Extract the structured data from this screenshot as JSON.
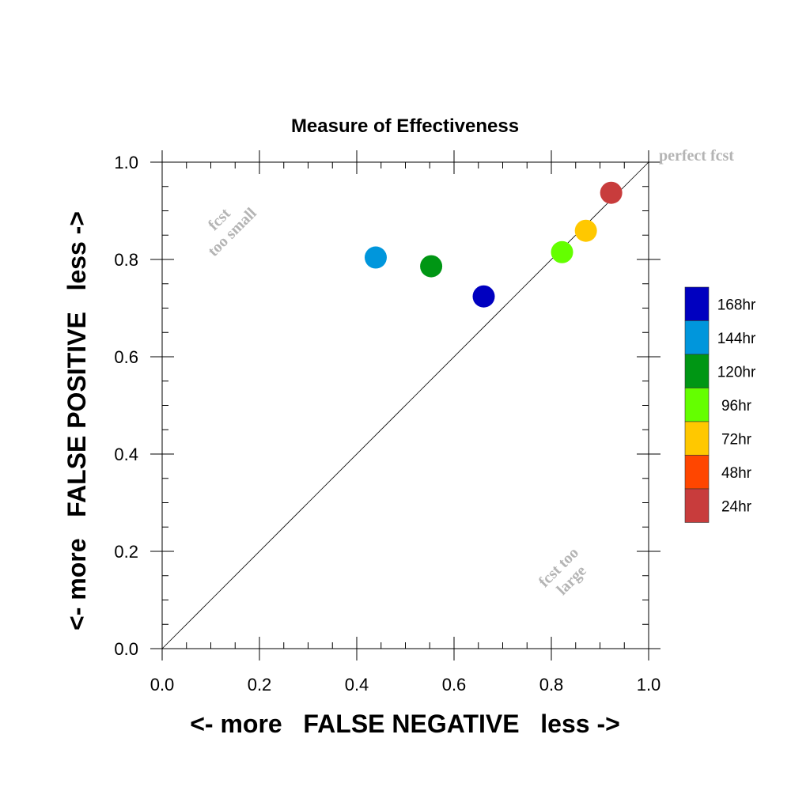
{
  "chart_data": {
    "type": "scatter",
    "title": "Measure of Effectiveness",
    "xlabel": "<- more   FALSE NEGATIVE   less ->",
    "ylabel": "<- more   FALSE POSITIVE   less ->",
    "xlim": [
      0.0,
      1.0
    ],
    "ylim": [
      0.0,
      1.0
    ],
    "xticks": [
      "0.0",
      "0.2",
      "0.4",
      "0.6",
      "0.8",
      "1.0"
    ],
    "yticks": [
      "0.0",
      "0.2",
      "0.4",
      "0.6",
      "0.8",
      "1.0"
    ],
    "grid": false,
    "diagonal_reference_line": true,
    "legend_position": "right",
    "annotations": {
      "perfect": "perfect fcst",
      "too_small_1": "fcst",
      "too_small_2": "too small",
      "too_large_1": "fcst too",
      "too_large_2": "large"
    },
    "legend": [
      {
        "label": "168hr",
        "color": "#0000c0"
      },
      {
        "label": "144hr",
        "color": "#0096dc"
      },
      {
        "label": "120hr",
        "color": "#009614"
      },
      {
        "label": "96hr",
        "color": "#64ff00"
      },
      {
        "label": "72hr",
        "color": "#ffc800"
      },
      {
        "label": "48hr",
        "color": "#ff4600"
      },
      {
        "label": "24hr",
        "color": "#c83c3c"
      }
    ],
    "points": [
      {
        "series": "168hr",
        "x": 0.661,
        "y": 0.724,
        "color": "#0000c0"
      },
      {
        "series": "144hr",
        "x": 0.439,
        "y": 0.804,
        "color": "#0096dc"
      },
      {
        "series": "120hr",
        "x": 0.553,
        "y": 0.786,
        "color": "#009614"
      },
      {
        "series": "96hr",
        "x": 0.822,
        "y": 0.815,
        "color": "#64ff00"
      },
      {
        "series": "72hr",
        "x": 0.871,
        "y": 0.859,
        "color": "#ffc800"
      },
      {
        "series": "24hr",
        "x": 0.923,
        "y": 0.937,
        "color": "#c83c3c"
      }
    ]
  }
}
